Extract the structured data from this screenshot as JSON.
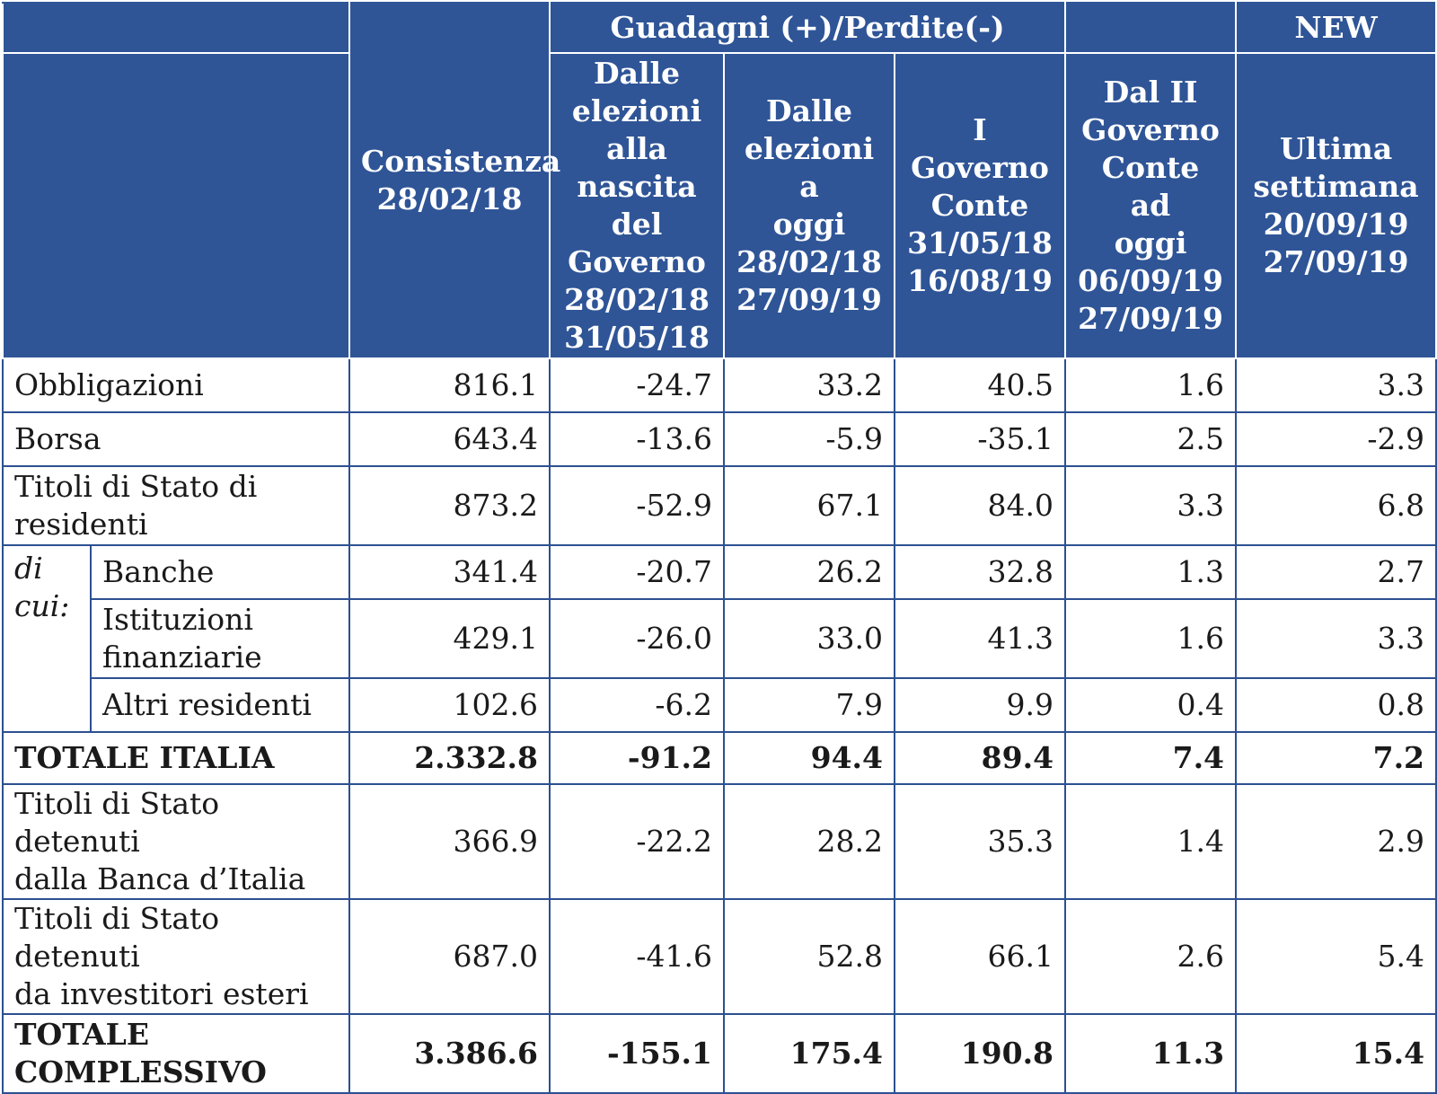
{
  "header": {
    "group_gains": "Guadagni (+)/Perdite(-)",
    "group_new": "NEW",
    "columns": [
      [
        "Consistenza",
        "28/02/18"
      ],
      [
        "Dalle",
        "elezioni",
        "alla",
        "nascita",
        "del",
        "Governo",
        "28/02/18",
        "31/05/18"
      ],
      [
        "Dalle",
        "elezioni a",
        "oggi",
        "28/02/18",
        "27/09/19"
      ],
      [
        "I Governo",
        "Conte",
        "31/05/18",
        "16/08/19"
      ],
      [
        "Dal II",
        "Governo",
        "Conte ad",
        "oggi",
        "06/09/19",
        "27/09/19"
      ],
      [
        "Ultima",
        "settimana",
        "20/09/19",
        "27/09/19"
      ]
    ]
  },
  "subgroup_label": [
    "di",
    "cui:"
  ],
  "rows": [
    {
      "label": [
        "Obbligazioni"
      ],
      "values": [
        "816.1",
        "-24.7",
        "33.2",
        "40.5",
        "1.6",
        "3.3"
      ]
    },
    {
      "label": [
        "Borsa"
      ],
      "values": [
        "643.4",
        "-13.6",
        "-5.9",
        "-35.1",
        "2.5",
        "-2.9"
      ]
    },
    {
      "label": [
        "Titoli di Stato di",
        "residenti"
      ],
      "values": [
        "873.2",
        "-52.9",
        "67.1",
        "84.0",
        "3.3",
        "6.8"
      ]
    },
    {
      "label": [
        "Banche"
      ],
      "values": [
        "341.4",
        "-20.7",
        "26.2",
        "32.8",
        "1.3",
        "2.7"
      ]
    },
    {
      "label": [
        "Istituzioni",
        "finanziarie"
      ],
      "values": [
        "429.1",
        "-26.0",
        "33.0",
        "41.3",
        "1.6",
        "3.3"
      ]
    },
    {
      "label": [
        "Altri residenti"
      ],
      "values": [
        "102.6",
        "-6.2",
        "7.9",
        "9.9",
        "0.4",
        "0.8"
      ]
    },
    {
      "label": [
        "TOTALE ITALIA"
      ],
      "values": [
        "2.332.8",
        "-91.2",
        "94.4",
        "89.4",
        "7.4",
        "7.2"
      ]
    },
    {
      "label": [
        "Titoli di Stato detenuti",
        "dalla Banca d’Italia"
      ],
      "values": [
        "366.9",
        "-22.2",
        "28.2",
        "35.3",
        "1.4",
        "2.9"
      ]
    },
    {
      "label": [
        "Titoli di Stato detenuti",
        "da investitori esteri"
      ],
      "values": [
        "687.0",
        "-41.6",
        "52.8",
        "66.1",
        "2.6",
        "5.4"
      ]
    },
    {
      "label": [
        "TOTALE",
        "COMPLESSIVO"
      ],
      "values": [
        "3.386.6",
        "-155.1",
        "175.4",
        "190.8",
        "11.3",
        "15.4"
      ]
    }
  ]
}
